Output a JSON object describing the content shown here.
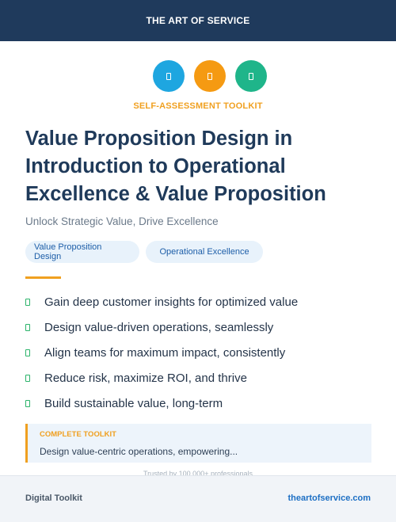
{
  "header": {
    "title": "THE ART OF SERVICE"
  },
  "icons": [
    {
      "name": "toolkit-icon-blue",
      "color": "#1ea6e0"
    },
    {
      "name": "toolkit-icon-orange",
      "color": "#f59a12"
    },
    {
      "name": "toolkit-icon-green",
      "color": "#1fb58a"
    }
  ],
  "kicker": "SELF-ASSESSMENT TOOLKIT",
  "title": "Value Proposition Design in Introduction to Operational Excellence & Value Proposition",
  "subtitle": "Unlock Strategic Value, Drive Excellence",
  "tags": [
    "Value Proposition Design",
    "Operational Excellence"
  ],
  "benefits": [
    "Gain deep customer insights for optimized value",
    "Design value-driven operations, seamlessly",
    "Align teams for maximum impact, consistently",
    "Reduce risk, maximize ROI, and thrive",
    "Build sustainable value, long-term"
  ],
  "callout": {
    "label": "COMPLETE TOOLKIT",
    "text": "Design value-centric operations, empowering..."
  },
  "trust": "Trusted by 100,000+ professionals",
  "footer": {
    "left": "Digital Toolkit",
    "right": "theartofservice.com"
  },
  "colors": {
    "navy": "#1f3a5c",
    "accent_orange": "#f0a020",
    "link_blue": "#1d6fc4",
    "check_green": "#2bb36a"
  }
}
